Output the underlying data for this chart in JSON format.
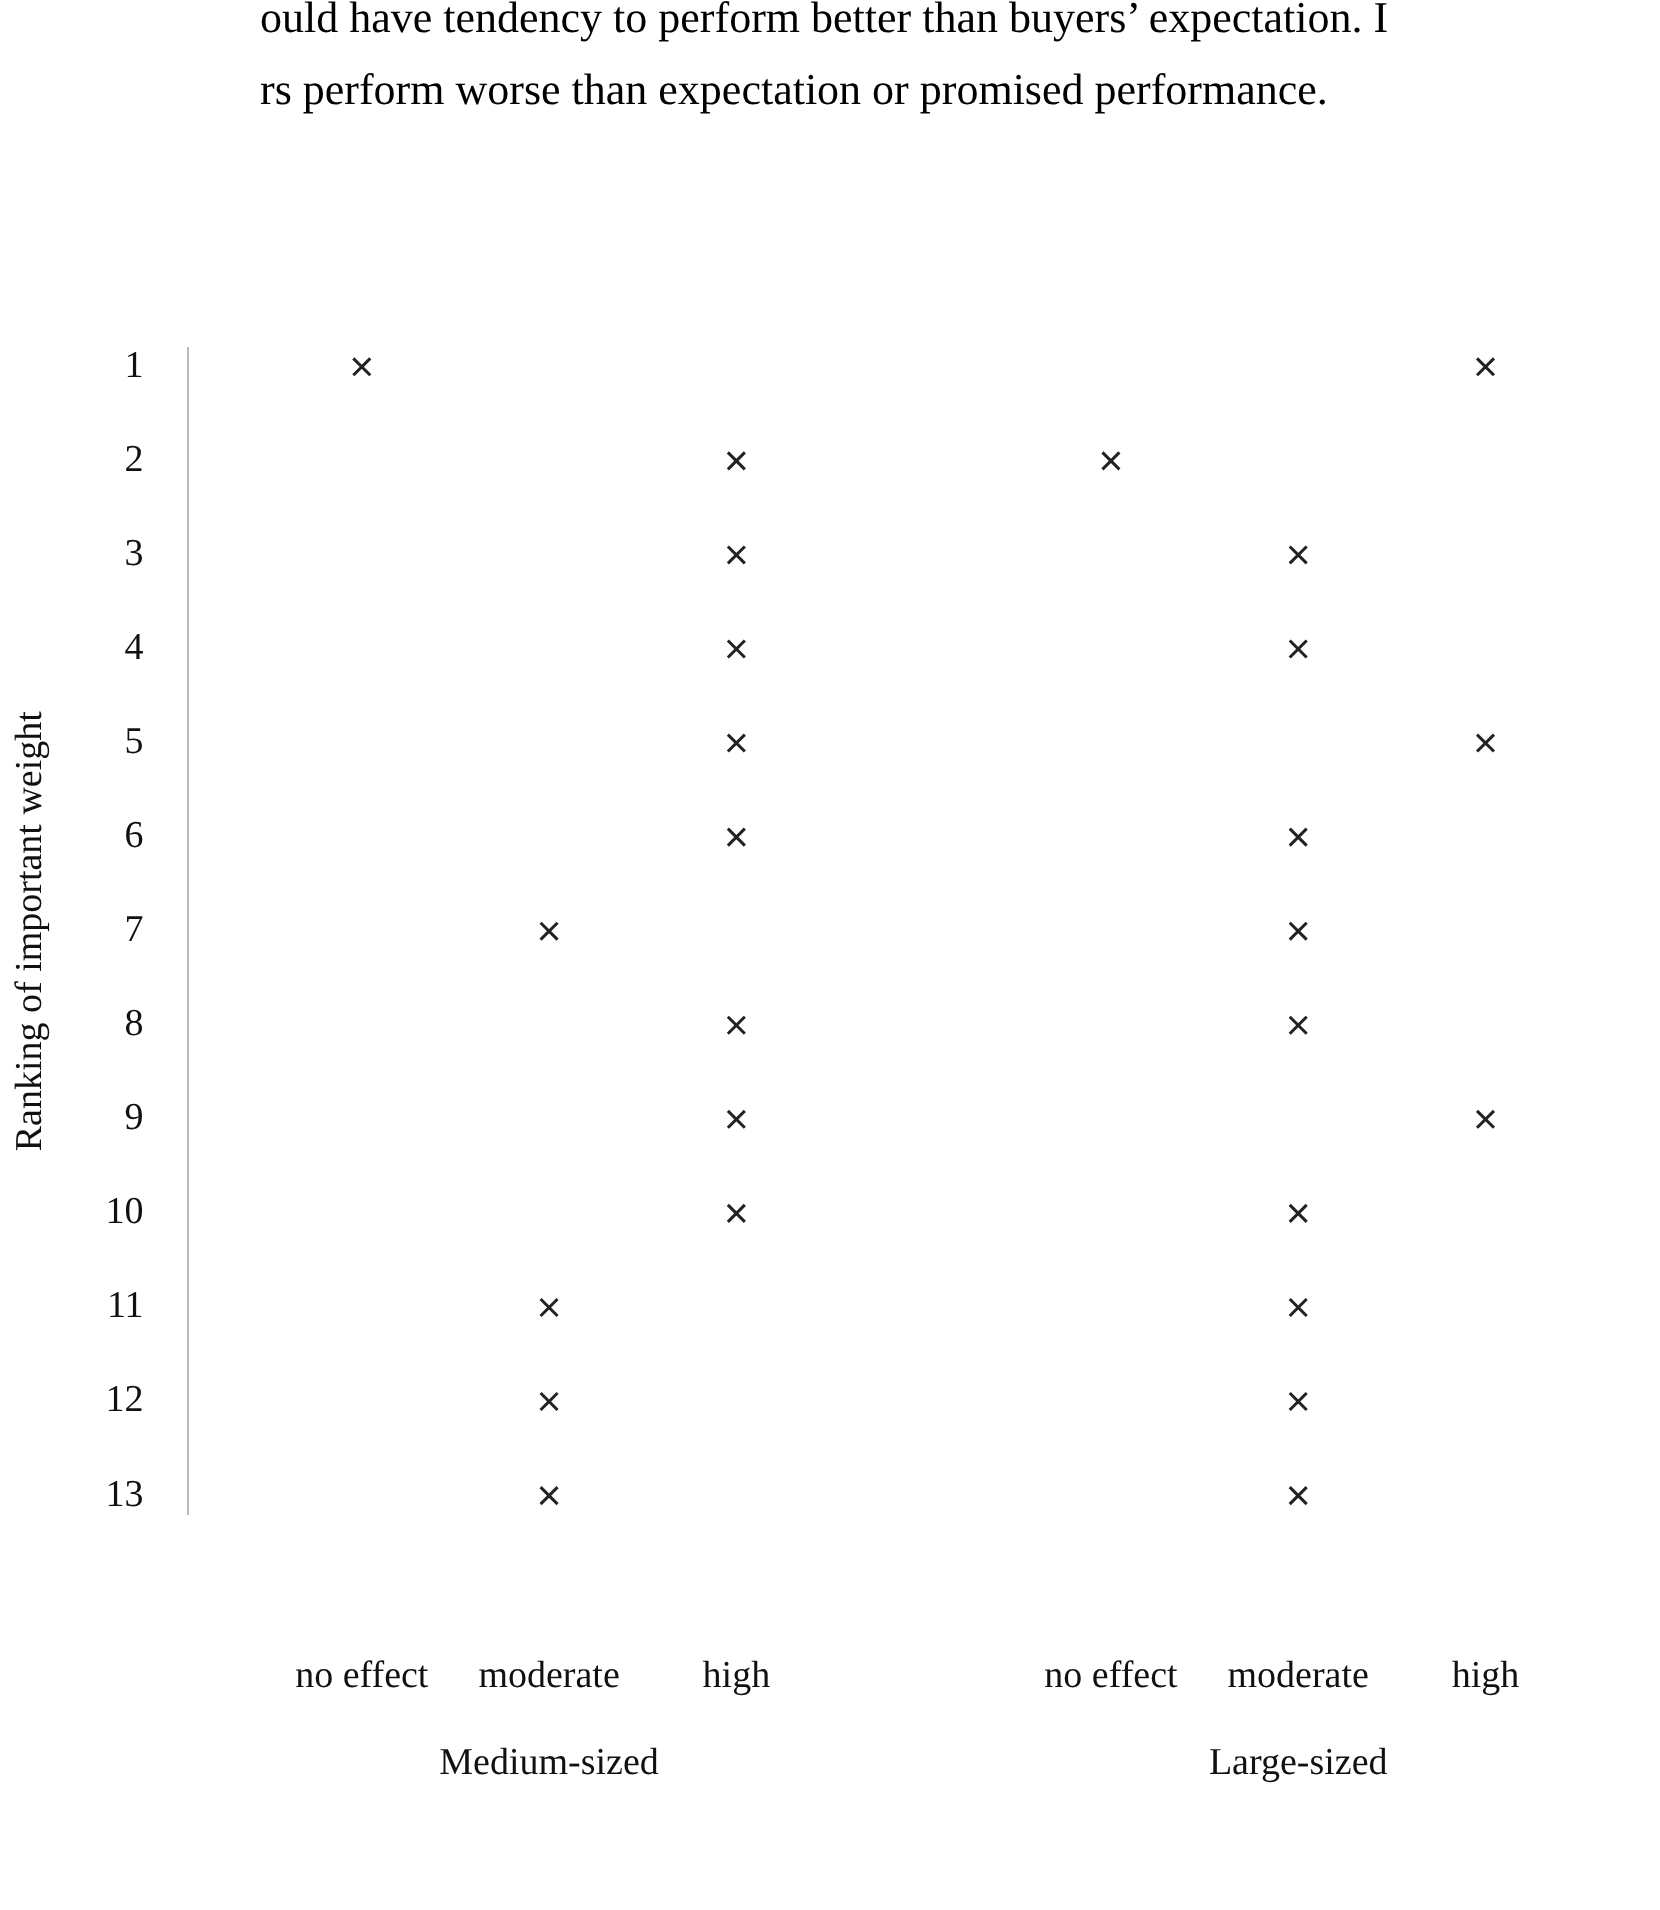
{
  "chart_data": {
    "type": "scatter",
    "ylabel": "Ranking of important weight",
    "categories": [
      "no effect",
      "moderate",
      "high",
      null,
      "no effect",
      "moderate",
      "high"
    ],
    "series": [
      {
        "color": "#222222",
        "values": [
          1,
          7,
          2,
          null,
          2,
          3,
          1
        ]
      },
      {
        "color": "#222222",
        "values": [
          null,
          11,
          3,
          null,
          null,
          4,
          5
        ]
      },
      {
        "color": "#222222",
        "values": [
          null,
          12,
          4,
          null,
          null,
          6,
          9
        ]
      },
      {
        "color": "#222222",
        "values": [
          null,
          13,
          5,
          null,
          null,
          7,
          null
        ]
      },
      {
        "color": "#222222",
        "values": [
          null,
          null,
          6,
          null,
          null,
          8,
          null
        ]
      },
      {
        "color": "#222222",
        "values": [
          null,
          null,
          8,
          null,
          null,
          10,
          null
        ]
      },
      {
        "color": "#222222",
        "values": [
          null,
          null,
          9,
          null,
          null,
          11,
          null
        ]
      },
      {
        "color": "#222222",
        "values": [
          null,
          null,
          10,
          null,
          null,
          12,
          null
        ]
      },
      {
        "color": "#222222",
        "values": [
          null,
          null,
          null,
          null,
          null,
          13,
          null
        ]
      }
    ],
    "ylim": [
      13.2,
      0.8
    ],
    "yticks": [
      1,
      2,
      3,
      4,
      5,
      6,
      7,
      8,
      9,
      10,
      11,
      12,
      13
    ],
    "marker": "cross",
    "grid": false,
    "legend": false,
    "annotations": [
      "ould have tendency to perform better than buyers’ expectation. I",
      "rs perform worse than expectation or promised performance.",
      "Medium-sized",
      "Large-sized"
    ]
  }
}
